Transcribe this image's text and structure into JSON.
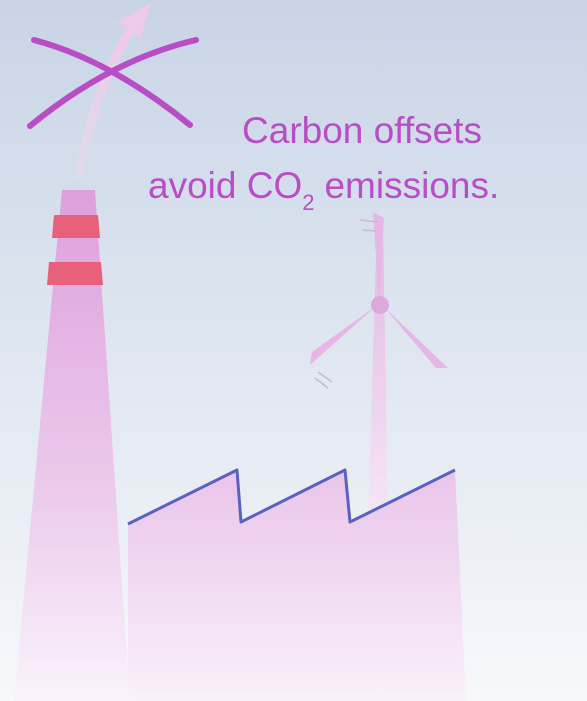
{
  "caption": {
    "line1": "Carbon offsets",
    "line2": {
      "before": "avoid CO",
      "subscript": "2",
      "after": "emissions."
    }
  }
}
